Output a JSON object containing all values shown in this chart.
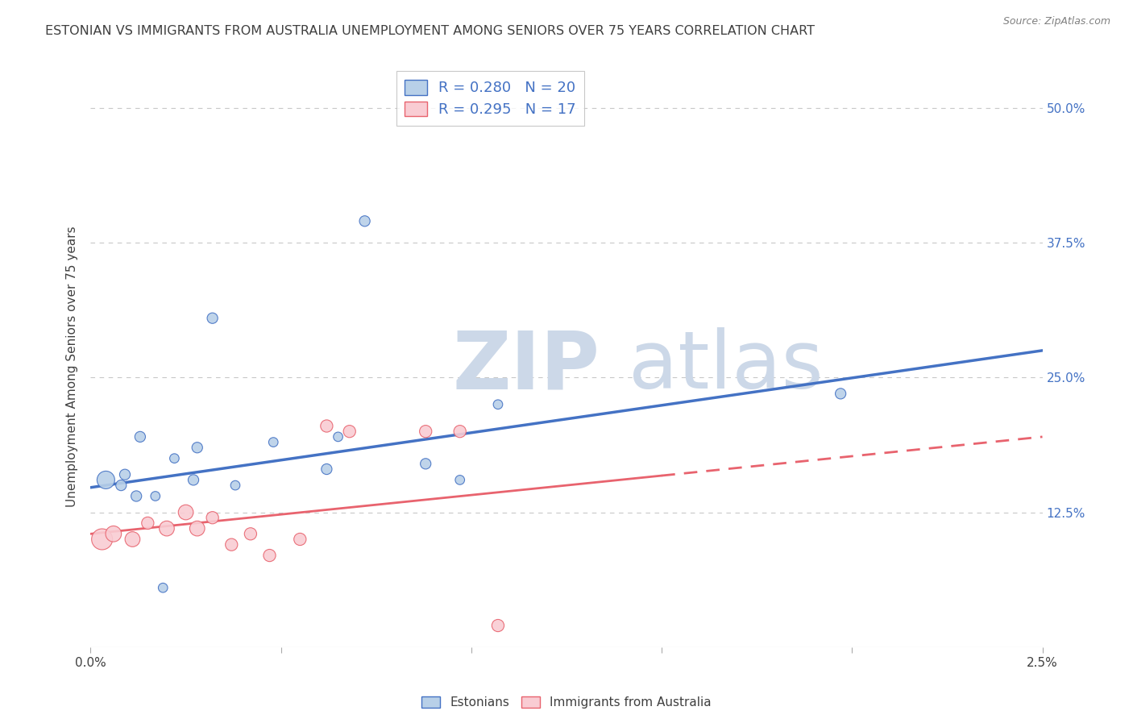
{
  "title": "ESTONIAN VS IMMIGRANTS FROM AUSTRALIA UNEMPLOYMENT AMONG SENIORS OVER 75 YEARS CORRELATION CHART",
  "source": "Source: ZipAtlas.com",
  "ylabel": "Unemployment Among Seniors over 75 years",
  "xlim": [
    0.0,
    2.5
  ],
  "ylim": [
    0.0,
    52.0
  ],
  "yticks": [
    0.0,
    12.5,
    25.0,
    37.5,
    50.0
  ],
  "xticks": [
    0.0,
    0.5,
    1.0,
    1.5,
    2.0,
    2.5
  ],
  "estonians_x": [
    0.04,
    0.08,
    0.09,
    0.12,
    0.13,
    0.17,
    0.22,
    0.27,
    0.28,
    0.32,
    0.38,
    0.48,
    0.62,
    0.65,
    0.72,
    0.88,
    0.97,
    1.07,
    1.97,
    0.19
  ],
  "estonians_y": [
    15.5,
    15.0,
    16.0,
    14.0,
    19.5,
    14.0,
    17.5,
    15.5,
    18.5,
    30.5,
    15.0,
    19.0,
    16.5,
    19.5,
    39.5,
    17.0,
    15.5,
    22.5,
    23.5,
    5.5
  ],
  "estonians_size": [
    250,
    90,
    90,
    90,
    90,
    70,
    70,
    90,
    90,
    90,
    70,
    70,
    90,
    70,
    90,
    90,
    70,
    70,
    90,
    70
  ],
  "estonians_color": "#b8d0e8",
  "estonians_edge": "#4472c4",
  "estonians_R": 0.28,
  "estonians_N": 20,
  "australia_x": [
    0.03,
    0.06,
    0.11,
    0.15,
    0.2,
    0.25,
    0.28,
    0.32,
    0.37,
    0.42,
    0.47,
    0.55,
    0.62,
    0.68,
    0.88,
    0.97,
    1.07
  ],
  "australia_y": [
    10.0,
    10.5,
    10.0,
    11.5,
    11.0,
    12.5,
    11.0,
    12.0,
    9.5,
    10.5,
    8.5,
    10.0,
    20.5,
    20.0,
    20.0,
    20.0,
    2.0
  ],
  "australia_size": [
    350,
    200,
    180,
    120,
    180,
    180,
    180,
    120,
    120,
    120,
    120,
    120,
    120,
    120,
    120,
    120,
    120
  ],
  "australia_color": "#f9ccd3",
  "australia_edge": "#e8636e",
  "australia_R": 0.295,
  "australia_N": 17,
  "blue_line_x0": 0.0,
  "blue_line_y0": 14.8,
  "blue_line_x1": 2.5,
  "blue_line_y1": 27.5,
  "pink_line_x0": 0.0,
  "pink_line_y0": 10.5,
  "pink_line_x1": 2.5,
  "pink_line_y1": 19.5,
  "blue_line_color": "#4472c4",
  "pink_line_color": "#e8636e",
  "title_color": "#404040",
  "source_color": "#808080",
  "legend_text_color": "#4472c4",
  "watermark_zip": "ZIP",
  "watermark_atlas": "atlas",
  "watermark_color": "#ccd8e8",
  "background_color": "#ffffff",
  "grid_color": "#c8c8c8"
}
